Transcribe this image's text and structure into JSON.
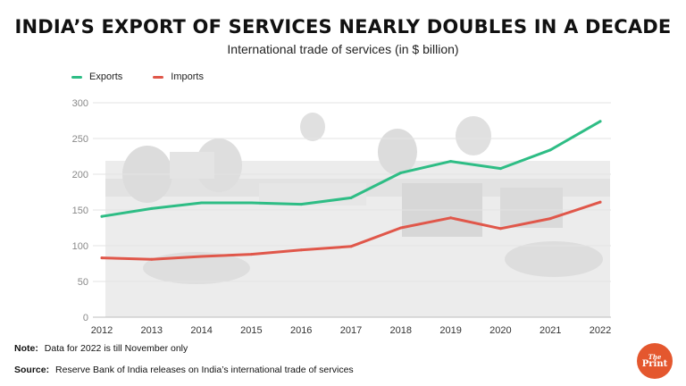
{
  "title": "INDIA’S EXPORT OF SERVICES NEARLY DOUBLES IN A DECADE",
  "subtitle": "International trade of services (in $ billion)",
  "note": {
    "label": "Note:",
    "text": "Data for 2022 is till November only"
  },
  "source": {
    "label": "Source:",
    "text": "Reserve Bank of India releases on India’s international trade of services"
  },
  "logo": {
    "top": "The",
    "bottom": "Print"
  },
  "colors": {
    "exports": "#2ebd85",
    "imports": "#e0574a",
    "logo": "#e4572e"
  },
  "chart_data": {
    "type": "line",
    "title": "INDIA’S EXPORT OF SERVICES NEARLY DOUBLES IN A DECADE",
    "subtitle": "International trade of services (in $ billion)",
    "xlabel": "",
    "ylabel": "",
    "x": [
      "2012",
      "2013",
      "2014",
      "2015",
      "2016",
      "2017",
      "2018",
      "2019",
      "2020",
      "2021",
      "2022"
    ],
    "ylim": [
      0,
      300
    ],
    "yticks": [
      0,
      50,
      100,
      150,
      200,
      250,
      300
    ],
    "grid": true,
    "legend_position": "top-left",
    "series": [
      {
        "name": "Exports",
        "color": "#2ebd85",
        "values": [
          141,
          152,
          160,
          160,
          158,
          167,
          202,
          218,
          208,
          234,
          274
        ]
      },
      {
        "name": "Imports",
        "color": "#e0574a",
        "values": [
          83,
          81,
          85,
          88,
          94,
          99,
          125,
          139,
          124,
          138,
          161
        ]
      }
    ]
  }
}
